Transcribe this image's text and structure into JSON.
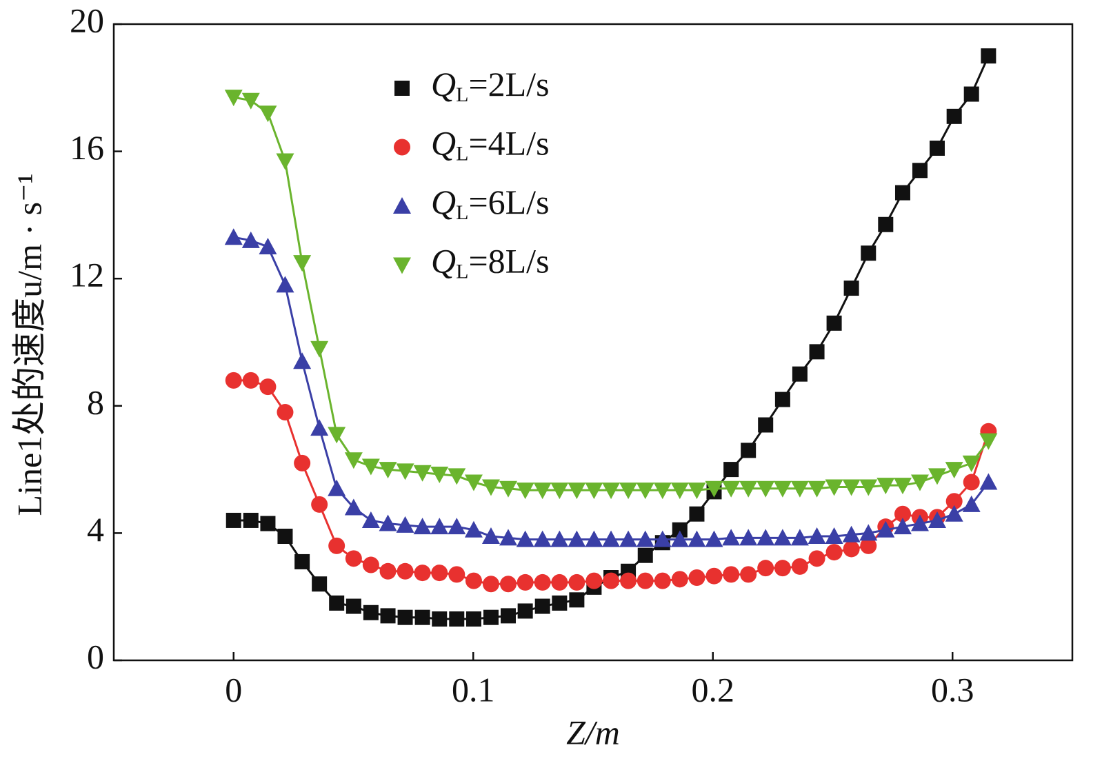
{
  "chart_data": {
    "type": "line",
    "x_label": "Z/m",
    "y_label": "Line1处的速度u/m · s⁻¹",
    "x": [
      0,
      0.0072,
      0.0143,
      0.0215,
      0.0286,
      0.0358,
      0.043,
      0.0501,
      0.0573,
      0.0644,
      0.0716,
      0.0788,
      0.0859,
      0.0931,
      0.1002,
      0.1074,
      0.1146,
      0.1217,
      0.1289,
      0.136,
      0.1432,
      0.1504,
      0.1575,
      0.1647,
      0.1718,
      0.179,
      0.1862,
      0.1933,
      0.2005,
      0.2076,
      0.2148,
      0.222,
      0.2291,
      0.2363,
      0.2434,
      0.2506,
      0.2578,
      0.2649,
      0.2721,
      0.2792,
      0.2864,
      0.2936,
      0.3007,
      0.3079,
      0.315
    ],
    "series": [
      {
        "name": "QL=2L/s",
        "color": "#111111",
        "marker": "square",
        "values": [
          4.4,
          4.4,
          4.3,
          3.9,
          3.1,
          2.4,
          1.8,
          1.7,
          1.5,
          1.4,
          1.35,
          1.35,
          1.3,
          1.3,
          1.3,
          1.35,
          1.4,
          1.55,
          1.7,
          1.8,
          1.9,
          2.3,
          2.6,
          2.8,
          3.3,
          3.7,
          4.1,
          4.6,
          5.3,
          6.0,
          6.6,
          7.4,
          8.2,
          9.0,
          9.7,
          10.6,
          11.7,
          12.8,
          13.7,
          14.7,
          15.4,
          16.1,
          17.1,
          17.8,
          19.0
        ]
      },
      {
        "name": "QL=4L/s",
        "color": "#e8312f",
        "marker": "circle",
        "values": [
          8.8,
          8.8,
          8.6,
          7.8,
          6.2,
          4.9,
          3.6,
          3.2,
          3.0,
          2.8,
          2.8,
          2.75,
          2.75,
          2.7,
          2.5,
          2.4,
          2.4,
          2.45,
          2.45,
          2.45,
          2.45,
          2.5,
          2.5,
          2.5,
          2.5,
          2.5,
          2.55,
          2.6,
          2.65,
          2.7,
          2.7,
          2.9,
          2.9,
          2.95,
          3.2,
          3.4,
          3.5,
          3.6,
          4.2,
          4.6,
          4.5,
          4.5,
          5.0,
          5.6,
          7.2
        ]
      },
      {
        "name": "QL=6L/s",
        "color": "#3a3fa6",
        "marker": "triangle-up",
        "values": [
          13.3,
          13.2,
          13.0,
          11.8,
          9.4,
          7.3,
          5.4,
          4.8,
          4.4,
          4.3,
          4.25,
          4.2,
          4.2,
          4.2,
          4.1,
          3.9,
          3.85,
          3.8,
          3.8,
          3.8,
          3.8,
          3.8,
          3.8,
          3.8,
          3.8,
          3.8,
          3.8,
          3.8,
          3.8,
          3.85,
          3.85,
          3.85,
          3.85,
          3.85,
          3.9,
          3.9,
          3.95,
          4.0,
          4.1,
          4.2,
          4.3,
          4.4,
          4.6,
          4.9,
          5.6
        ]
      },
      {
        "name": "QL=8L/s",
        "color": "#6ab42d",
        "marker": "triangle-down",
        "values": [
          17.7,
          17.6,
          17.2,
          15.7,
          12.5,
          9.8,
          7.1,
          6.3,
          6.1,
          6.0,
          5.95,
          5.9,
          5.85,
          5.8,
          5.6,
          5.45,
          5.4,
          5.35,
          5.35,
          5.35,
          5.35,
          5.35,
          5.35,
          5.35,
          5.35,
          5.35,
          5.35,
          5.35,
          5.4,
          5.4,
          5.4,
          5.4,
          5.4,
          5.4,
          5.4,
          5.45,
          5.45,
          5.45,
          5.5,
          5.5,
          5.6,
          5.8,
          6.0,
          6.2,
          6.9
        ]
      }
    ],
    "xlim": [
      -0.05,
      0.35
    ],
    "xticks": [
      0,
      0.1,
      0.2,
      0.3
    ],
    "ylim": [
      0,
      20
    ],
    "yticks": [
      0,
      4,
      8,
      12,
      16,
      20
    ],
    "grid": false,
    "legend": "upper-center"
  }
}
